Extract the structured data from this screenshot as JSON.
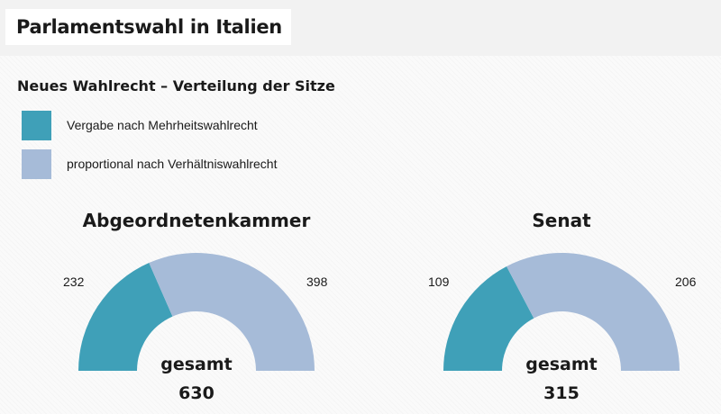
{
  "header": {
    "title": "Parlamentswahl in Italien"
  },
  "subtitle": "Neues Wahlrecht – Verteilung der Sitze",
  "legend": [
    {
      "label": "Vergabe nach Mehrheitswahlrecht",
      "color": "#3fa0b8"
    },
    {
      "label": "proportional nach Verhältniswahlrecht",
      "color": "#a6bbd8"
    }
  ],
  "chart_data": [
    {
      "type": "pie",
      "shape": "semicircle-donut",
      "title": "Abgeordnetenkammer",
      "categories": [
        "Vergabe nach Mehrheitswahlrecht",
        "proportional nach Verhältniswahlrecht"
      ],
      "values": [
        232,
        398
      ],
      "value_labels": [
        "232",
        "398"
      ],
      "colors": [
        "#3fa0b8",
        "#a6bbd8"
      ],
      "total_label": "gesamt",
      "total": "630"
    },
    {
      "type": "pie",
      "shape": "semicircle-donut",
      "title": "Senat",
      "categories": [
        "Vergabe nach Mehrheitswahlrecht",
        "proportional nach Verhältniswahlrecht"
      ],
      "values": [
        109,
        206
      ],
      "value_labels": [
        "109",
        "206"
      ],
      "colors": [
        "#3fa0b8",
        "#a6bbd8"
      ],
      "total_label": "gesamt",
      "total": "315"
    }
  ]
}
